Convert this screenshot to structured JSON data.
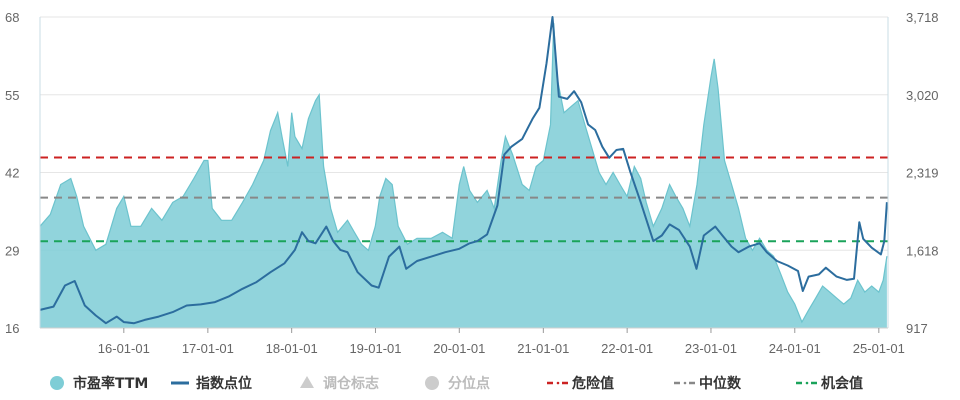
{
  "chart_data": {
    "type": "area",
    "x_ticks": [
      "16-01-01",
      "17-01-01",
      "18-01-01",
      "19-01-01",
      "20-01-01",
      "21-01-01",
      "22-01-01",
      "23-01-01",
      "24-01-01",
      "25-01-01"
    ],
    "y_left_ticks": [
      "16",
      "29",
      "42",
      "55",
      "68"
    ],
    "y_right_ticks": [
      "917",
      "1,618",
      "2,319",
      "3,020",
      "3,718"
    ],
    "ylim_left": [
      16,
      68
    ],
    "ylim_right": [
      917,
      3718
    ],
    "xlim": [
      "2015-01-01",
      "2025-02-10"
    ],
    "grid": "horizontal",
    "legend_position": "bottom",
    "series": [
      {
        "name": "市盈率TTM",
        "axis": "left",
        "kind": "area",
        "color": "#7ecdd6",
        "points": [
          [
            "2015-01-01",
            33
          ],
          [
            "2015-02-15",
            35
          ],
          [
            "2015-04-01",
            40
          ],
          [
            "2015-05-15",
            41
          ],
          [
            "2015-06-10",
            38
          ],
          [
            "2015-07-10",
            33
          ],
          [
            "2015-09-01",
            29
          ],
          [
            "2015-10-15",
            30
          ],
          [
            "2015-12-01",
            36
          ],
          [
            "2016-01-01",
            38
          ],
          [
            "2016-02-01",
            33
          ],
          [
            "2016-03-15",
            33
          ],
          [
            "2016-05-01",
            36
          ],
          [
            "2016-06-15",
            34
          ],
          [
            "2016-08-01",
            37
          ],
          [
            "2016-09-15",
            38
          ],
          [
            "2016-11-01",
            41
          ],
          [
            "2016-12-15",
            44
          ],
          [
            "2017-01-01",
            44
          ],
          [
            "2017-01-20",
            36
          ],
          [
            "2017-03-01",
            34
          ],
          [
            "2017-04-15",
            34
          ],
          [
            "2017-06-01",
            37
          ],
          [
            "2017-07-15",
            40
          ],
          [
            "2017-09-01",
            44
          ],
          [
            "2017-10-01",
            49
          ],
          [
            "2017-11-01",
            52
          ],
          [
            "2017-11-20",
            48
          ],
          [
            "2017-12-15",
            43
          ],
          [
            "2018-01-01",
            52
          ],
          [
            "2018-01-15",
            48
          ],
          [
            "2018-02-15",
            46
          ],
          [
            "2018-03-15",
            51
          ],
          [
            "2018-04-15",
            54
          ],
          [
            "2018-05-01",
            55
          ],
          [
            "2018-05-20",
            43
          ],
          [
            "2018-06-20",
            36
          ],
          [
            "2018-07-20",
            32
          ],
          [
            "2018-09-01",
            34
          ],
          [
            "2018-10-01",
            32
          ],
          [
            "2018-11-01",
            30
          ],
          [
            "2018-12-01",
            29
          ],
          [
            "2018-12-31",
            33
          ],
          [
            "2019-01-20",
            38
          ],
          [
            "2019-02-15",
            41
          ],
          [
            "2019-03-15",
            40
          ],
          [
            "2019-04-10",
            33
          ],
          [
            "2019-05-20",
            30
          ],
          [
            "2019-07-01",
            31
          ],
          [
            "2019-09-01",
            31
          ],
          [
            "2019-10-20",
            32
          ],
          [
            "2019-12-01",
            31
          ],
          [
            "2020-01-01",
            40
          ],
          [
            "2020-01-20",
            43
          ],
          [
            "2020-02-15",
            39
          ],
          [
            "2020-03-20",
            37
          ],
          [
            "2020-05-01",
            39
          ],
          [
            "2020-06-01",
            36
          ],
          [
            "2020-07-01",
            44
          ],
          [
            "2020-07-20",
            48
          ],
          [
            "2020-08-20",
            45
          ],
          [
            "2020-10-01",
            40
          ],
          [
            "2020-11-01",
            39
          ],
          [
            "2020-12-01",
            43
          ],
          [
            "2021-01-01",
            44
          ],
          [
            "2021-02-01",
            50
          ],
          [
            "2021-02-15",
            67
          ],
          [
            "2021-03-01",
            58
          ],
          [
            "2021-04-01",
            52
          ],
          [
            "2021-05-01",
            53
          ],
          [
            "2021-06-01",
            54
          ],
          [
            "2021-07-01",
            50
          ],
          [
            "2021-08-01",
            46
          ],
          [
            "2021-09-01",
            42
          ],
          [
            "2021-10-01",
            40
          ],
          [
            "2021-11-01",
            42
          ],
          [
            "2021-12-01",
            40
          ],
          [
            "2022-01-01",
            38
          ],
          [
            "2022-02-01",
            43
          ],
          [
            "2022-03-01",
            41
          ],
          [
            "2022-03-25",
            37
          ],
          [
            "2022-04-25",
            33
          ],
          [
            "2022-06-01",
            36
          ],
          [
            "2022-07-05",
            40
          ],
          [
            "2022-08-01",
            38
          ],
          [
            "2022-09-01",
            36
          ],
          [
            "2022-10-01",
            33
          ],
          [
            "2022-11-01",
            40
          ],
          [
            "2022-12-01",
            50
          ],
          [
            "2023-01-01",
            58
          ],
          [
            "2023-01-15",
            61
          ],
          [
            "2023-02-01",
            56
          ],
          [
            "2023-03-01",
            44
          ],
          [
            "2023-04-01",
            40
          ],
          [
            "2023-05-01",
            36
          ],
          [
            "2023-06-01",
            31
          ],
          [
            "2023-07-01",
            29
          ],
          [
            "2023-08-01",
            31
          ],
          [
            "2023-09-01",
            29
          ],
          [
            "2023-10-01",
            28
          ],
          [
            "2023-11-01",
            25
          ],
          [
            "2023-12-01",
            22
          ],
          [
            "2024-01-01",
            20
          ],
          [
            "2024-02-01",
            17
          ],
          [
            "2024-03-01",
            19
          ],
          [
            "2024-04-01",
            21
          ],
          [
            "2024-05-01",
            23
          ],
          [
            "2024-06-01",
            22
          ],
          [
            "2024-07-01",
            21
          ],
          [
            "2024-08-01",
            20
          ],
          [
            "2024-09-01",
            21
          ],
          [
            "2024-10-01",
            24
          ],
          [
            "2024-11-01",
            22
          ],
          [
            "2024-12-01",
            23
          ],
          [
            "2025-01-01",
            22
          ],
          [
            "2025-01-20",
            24
          ],
          [
            "2025-02-05",
            28
          ]
        ]
      },
      {
        "name": "指数点位",
        "axis": "right",
        "kind": "line",
        "color": "#2c6d9e",
        "points": [
          [
            "2015-01-01",
            1080
          ],
          [
            "2015-03-01",
            1110
          ],
          [
            "2015-04-20",
            1300
          ],
          [
            "2015-06-01",
            1340
          ],
          [
            "2015-07-15",
            1120
          ],
          [
            "2015-09-01",
            1030
          ],
          [
            "2015-10-15",
            960
          ],
          [
            "2015-12-01",
            1020
          ],
          [
            "2016-01-01",
            970
          ],
          [
            "2016-02-15",
            960
          ],
          [
            "2016-04-01",
            990
          ],
          [
            "2016-06-01",
            1020
          ],
          [
            "2016-08-01",
            1060
          ],
          [
            "2016-10-01",
            1120
          ],
          [
            "2016-12-01",
            1130
          ],
          [
            "2017-02-01",
            1150
          ],
          [
            "2017-04-01",
            1200
          ],
          [
            "2017-06-01",
            1270
          ],
          [
            "2017-08-01",
            1330
          ],
          [
            "2017-10-01",
            1420
          ],
          [
            "2017-12-01",
            1500
          ],
          [
            "2018-01-15",
            1620
          ],
          [
            "2018-02-15",
            1780
          ],
          [
            "2018-03-15",
            1700
          ],
          [
            "2018-04-15",
            1680
          ],
          [
            "2018-06-01",
            1830
          ],
          [
            "2018-07-01",
            1700
          ],
          [
            "2018-08-01",
            1620
          ],
          [
            "2018-09-01",
            1600
          ],
          [
            "2018-10-15",
            1420
          ],
          [
            "2018-12-15",
            1300
          ],
          [
            "2019-01-15",
            1280
          ],
          [
            "2019-03-01",
            1560
          ],
          [
            "2019-04-15",
            1650
          ],
          [
            "2019-05-15",
            1450
          ],
          [
            "2019-07-01",
            1520
          ],
          [
            "2019-09-01",
            1560
          ],
          [
            "2019-11-01",
            1600
          ],
          [
            "2020-01-01",
            1630
          ],
          [
            "2020-02-15",
            1680
          ],
          [
            "2020-03-20",
            1700
          ],
          [
            "2020-05-01",
            1760
          ],
          [
            "2020-06-15",
            2020
          ],
          [
            "2020-07-15",
            2480
          ],
          [
            "2020-08-15",
            2550
          ],
          [
            "2020-10-01",
            2620
          ],
          [
            "2020-11-15",
            2800
          ],
          [
            "2020-12-15",
            2900
          ],
          [
            "2021-01-15",
            3300
          ],
          [
            "2021-02-10",
            3718
          ],
          [
            "2021-03-10",
            3000
          ],
          [
            "2021-04-15",
            2980
          ],
          [
            "2021-05-15",
            3050
          ],
          [
            "2021-06-15",
            2950
          ],
          [
            "2021-07-15",
            2750
          ],
          [
            "2021-08-15",
            2700
          ],
          [
            "2021-09-15",
            2550
          ],
          [
            "2021-10-15",
            2450
          ],
          [
            "2021-11-15",
            2520
          ],
          [
            "2021-12-15",
            2530
          ],
          [
            "2022-01-15",
            2320
          ],
          [
            "2022-03-01",
            2050
          ],
          [
            "2022-04-25",
            1700
          ],
          [
            "2022-06-01",
            1750
          ],
          [
            "2022-07-05",
            1850
          ],
          [
            "2022-08-15",
            1800
          ],
          [
            "2022-10-01",
            1650
          ],
          [
            "2022-10-30",
            1450
          ],
          [
            "2022-12-01",
            1750
          ],
          [
            "2023-01-20",
            1830
          ],
          [
            "2023-02-20",
            1750
          ],
          [
            "2023-04-01",
            1650
          ],
          [
            "2023-05-01",
            1600
          ],
          [
            "2023-06-15",
            1650
          ],
          [
            "2023-08-01",
            1680
          ],
          [
            "2023-09-01",
            1600
          ],
          [
            "2023-10-15",
            1520
          ],
          [
            "2023-12-01",
            1480
          ],
          [
            "2024-01-15",
            1430
          ],
          [
            "2024-02-05",
            1250
          ],
          [
            "2024-03-01",
            1380
          ],
          [
            "2024-04-15",
            1400
          ],
          [
            "2024-05-15",
            1460
          ],
          [
            "2024-07-01",
            1380
          ],
          [
            "2024-08-15",
            1350
          ],
          [
            "2024-09-15",
            1360
          ],
          [
            "2024-10-08",
            1870
          ],
          [
            "2024-10-25",
            1720
          ],
          [
            "2024-12-01",
            1640
          ],
          [
            "2025-01-10",
            1580
          ],
          [
            "2025-01-25",
            1700
          ],
          [
            "2025-02-05",
            2050
          ]
        ]
      }
    ],
    "reference_lines": [
      {
        "name": "危险值",
        "axis": "left",
        "value": 44.5,
        "color": "#cc2222"
      },
      {
        "name": "中位数",
        "axis": "left",
        "value": 37.8,
        "color": "#888888"
      },
      {
        "name": "机会值",
        "axis": "left",
        "value": 30.5,
        "color": "#1aa35a"
      }
    ],
    "legend": [
      {
        "label": "市盈率TTM",
        "icon": "circle",
        "color": "#7ecdd6",
        "active": true
      },
      {
        "label": "指数点位",
        "icon": "line",
        "color": "#2c6d9e",
        "active": true
      },
      {
        "label": "调仓标志",
        "icon": "triangle",
        "color": "#cccccc",
        "active": false
      },
      {
        "label": "分位点",
        "icon": "circle",
        "color": "#cccccc",
        "active": false
      },
      {
        "label": "危险值",
        "icon": "dashed-line",
        "color": "#cc2222",
        "active": true
      },
      {
        "label": "中位数",
        "icon": "dashed-line",
        "color": "#888888",
        "active": true
      },
      {
        "label": "机会值",
        "icon": "dashed-line",
        "color": "#1aa35a",
        "active": true
      }
    ]
  }
}
